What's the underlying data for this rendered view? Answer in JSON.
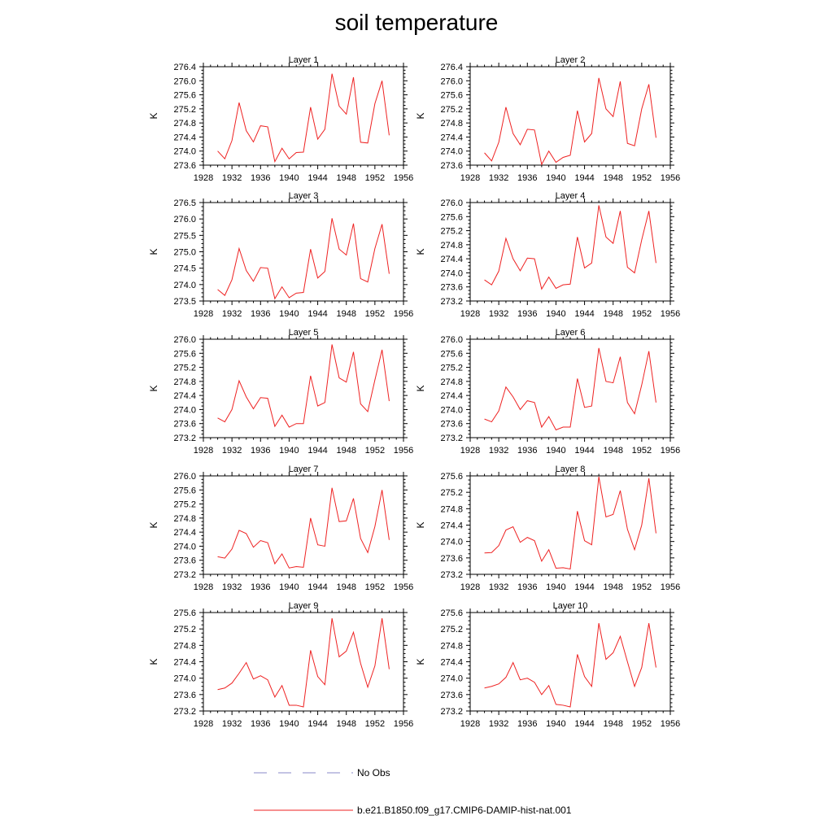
{
  "title": "soil temperature",
  "legend": [
    {
      "label": "No Obs",
      "color": "#8a8ac8",
      "style": "dashed"
    },
    {
      "label": "b.e21.B1850.f09_g17.CMIP6-DAMIP-hist-nat.001",
      "color": "#ee2222",
      "style": "solid"
    }
  ],
  "colors": {
    "series": "#ee2222",
    "axis": "#000000"
  },
  "chart_data": [
    {
      "type": "line",
      "title": "Layer 1",
      "ylabel": "K",
      "xlim": [
        1928,
        1956
      ],
      "xticks": [
        "1928",
        "1932",
        "1936",
        "1940",
        "1944",
        "1948",
        "1952",
        "1956"
      ],
      "ylim": [
        273.6,
        276.4
      ],
      "yticks": [
        "273.6",
        "274.0",
        "274.4",
        "274.8",
        "275.2",
        "275.6",
        "276.0",
        "276.4"
      ],
      "x": [
        1930,
        1931,
        1932,
        1933,
        1934,
        1935,
        1936,
        1937,
        1938,
        1939,
        1940,
        1941,
        1942,
        1943,
        1944,
        1945,
        1946,
        1947,
        1948,
        1949,
        1950,
        1951,
        1952,
        1953,
        1954
      ],
      "series": [
        {
          "values": [
            274.0,
            273.78,
            274.3,
            275.38,
            274.58,
            274.26,
            274.72,
            274.69,
            273.7,
            274.08,
            273.78,
            273.96,
            273.97,
            275.25,
            274.34,
            274.62,
            276.2,
            275.28,
            275.05,
            276.1,
            274.25,
            274.23,
            275.35,
            276.0,
            274.45
          ]
        }
      ]
    },
    {
      "type": "line",
      "title": "Layer 2",
      "ylabel": "K",
      "xlim": [
        1928,
        1956
      ],
      "xticks": [
        "1928",
        "1932",
        "1936",
        "1940",
        "1944",
        "1948",
        "1952",
        "1956"
      ],
      "ylim": [
        273.6,
        276.4
      ],
      "yticks": [
        "273.6",
        "274.0",
        "274.4",
        "274.8",
        "275.2",
        "275.6",
        "276.0",
        "276.4"
      ],
      "x": [
        1930,
        1931,
        1932,
        1933,
        1934,
        1935,
        1936,
        1937,
        1938,
        1939,
        1940,
        1941,
        1942,
        1943,
        1944,
        1945,
        1946,
        1947,
        1948,
        1949,
        1950,
        1951,
        1952,
        1953,
        1954
      ],
      "series": [
        {
          "values": [
            273.95,
            273.72,
            274.25,
            275.25,
            274.5,
            274.18,
            274.62,
            274.6,
            273.62,
            274.0,
            273.68,
            273.82,
            273.88,
            275.15,
            274.26,
            274.5,
            276.08,
            275.2,
            274.98,
            275.98,
            274.22,
            274.15,
            275.2,
            275.9,
            274.38
          ]
        }
      ]
    },
    {
      "type": "line",
      "title": "Layer 3",
      "ylabel": "K",
      "xlim": [
        1928,
        1956
      ],
      "xticks": [
        "1928",
        "1932",
        "1936",
        "1940",
        "1944",
        "1948",
        "1952",
        "1956"
      ],
      "ylim": [
        273.5,
        276.5
      ],
      "yticks": [
        "273.5",
        "274.0",
        "274.5",
        "275.0",
        "275.5",
        "276.0",
        "276.5"
      ],
      "x": [
        1930,
        1931,
        1932,
        1933,
        1934,
        1935,
        1936,
        1937,
        1938,
        1939,
        1940,
        1941,
        1942,
        1943,
        1944,
        1945,
        1946,
        1947,
        1948,
        1949,
        1950,
        1951,
        1952,
        1953,
        1954
      ],
      "series": [
        {
          "values": [
            273.85,
            273.67,
            274.15,
            275.1,
            274.43,
            274.1,
            274.52,
            274.5,
            273.57,
            273.93,
            273.6,
            273.74,
            273.76,
            275.08,
            274.2,
            274.4,
            276.02,
            275.08,
            274.9,
            275.86,
            274.18,
            274.08,
            275.1,
            275.84,
            274.33
          ]
        }
      ]
    },
    {
      "type": "line",
      "title": "Layer 4",
      "ylabel": "K",
      "xlim": [
        1928,
        1956
      ],
      "xticks": [
        "1928",
        "1932",
        "1936",
        "1940",
        "1944",
        "1948",
        "1952",
        "1956"
      ],
      "ylim": [
        273.2,
        276.0
      ],
      "yticks": [
        "273.2",
        "273.6",
        "274.0",
        "274.4",
        "274.8",
        "275.2",
        "275.6",
        "276.0"
      ],
      "x": [
        1930,
        1931,
        1932,
        1933,
        1934,
        1935,
        1936,
        1937,
        1938,
        1939,
        1940,
        1941,
        1942,
        1943,
        1944,
        1945,
        1946,
        1947,
        1948,
        1949,
        1950,
        1951,
        1952,
        1953,
        1954
      ],
      "series": [
        {
          "values": [
            273.8,
            273.66,
            274.05,
            274.98,
            274.4,
            274.06,
            274.42,
            274.4,
            273.54,
            273.88,
            273.56,
            273.66,
            273.68,
            275.02,
            274.14,
            274.28,
            275.92,
            275.02,
            274.84,
            275.76,
            274.16,
            274.0,
            274.94,
            275.76,
            274.28
          ]
        }
      ]
    },
    {
      "type": "line",
      "title": "Layer 5",
      "ylabel": "K",
      "xlim": [
        1928,
        1956
      ],
      "xticks": [
        "1928",
        "1932",
        "1936",
        "1940",
        "1944",
        "1948",
        "1952",
        "1956"
      ],
      "ylim": [
        273.2,
        276.0
      ],
      "yticks": [
        "273.2",
        "273.6",
        "274.0",
        "274.4",
        "274.8",
        "275.2",
        "275.6",
        "276.0"
      ],
      "x": [
        1930,
        1931,
        1932,
        1933,
        1934,
        1935,
        1936,
        1937,
        1938,
        1939,
        1940,
        1941,
        1942,
        1943,
        1944,
        1945,
        1946,
        1947,
        1948,
        1949,
        1950,
        1951,
        1952,
        1953,
        1954
      ],
      "series": [
        {
          "values": [
            273.76,
            273.65,
            274.0,
            274.82,
            274.36,
            274.02,
            274.34,
            274.32,
            273.52,
            273.84,
            273.5,
            273.6,
            273.6,
            274.96,
            274.1,
            274.2,
            275.85,
            274.9,
            274.78,
            275.64,
            274.16,
            273.94,
            274.84,
            275.7,
            274.24
          ]
        }
      ]
    },
    {
      "type": "line",
      "title": "Layer 6",
      "ylabel": "K",
      "xlim": [
        1928,
        1956
      ],
      "xticks": [
        "1928",
        "1932",
        "1936",
        "1940",
        "1944",
        "1948",
        "1952",
        "1956"
      ],
      "ylim": [
        273.2,
        276.0
      ],
      "yticks": [
        "273.2",
        "273.6",
        "274.0",
        "274.4",
        "274.8",
        "275.2",
        "275.6",
        "276.0"
      ],
      "x": [
        1930,
        1931,
        1932,
        1933,
        1934,
        1935,
        1936,
        1937,
        1938,
        1939,
        1940,
        1941,
        1942,
        1943,
        1944,
        1945,
        1946,
        1947,
        1948,
        1949,
        1950,
        1951,
        1952,
        1953,
        1954
      ],
      "series": [
        {
          "values": [
            273.73,
            273.65,
            273.96,
            274.64,
            274.36,
            274.0,
            274.25,
            274.2,
            273.5,
            273.8,
            273.42,
            273.5,
            273.5,
            274.88,
            274.06,
            274.1,
            275.75,
            274.8,
            274.76,
            275.5,
            274.2,
            273.88,
            274.7,
            275.66,
            274.2
          ]
        }
      ]
    },
    {
      "type": "line",
      "title": "Layer 7",
      "ylabel": "K",
      "xlim": [
        1928,
        1956
      ],
      "xticks": [
        "1928",
        "1932",
        "1936",
        "1940",
        "1944",
        "1948",
        "1952",
        "1956"
      ],
      "ylim": [
        273.2,
        276.0
      ],
      "yticks": [
        "273.2",
        "273.6",
        "274.0",
        "274.4",
        "274.8",
        "275.2",
        "275.6",
        "276.0"
      ],
      "x": [
        1930,
        1931,
        1932,
        1933,
        1934,
        1935,
        1936,
        1937,
        1938,
        1939,
        1940,
        1941,
        1942,
        1943,
        1944,
        1945,
        1946,
        1947,
        1948,
        1949,
        1950,
        1951,
        1952,
        1953,
        1954
      ],
      "series": [
        {
          "values": [
            273.7,
            273.66,
            273.92,
            274.45,
            274.36,
            273.97,
            274.16,
            274.1,
            273.5,
            273.78,
            273.38,
            273.42,
            273.4,
            274.8,
            274.04,
            274.0,
            275.66,
            274.7,
            274.72,
            275.36,
            274.22,
            273.82,
            274.56,
            275.6,
            274.18
          ]
        }
      ]
    },
    {
      "type": "line",
      "title": "Layer 8",
      "ylabel": "K",
      "xlim": [
        1928,
        1956
      ],
      "xticks": [
        "1928",
        "1932",
        "1936",
        "1940",
        "1944",
        "1948",
        "1952",
        "1956"
      ],
      "ylim": [
        273.2,
        275.6
      ],
      "yticks": [
        "273.2",
        "273.6",
        "274.0",
        "274.4",
        "274.8",
        "275.2",
        "275.6"
      ],
      "x": [
        1930,
        1931,
        1932,
        1933,
        1934,
        1935,
        1936,
        1937,
        1938,
        1939,
        1940,
        1941,
        1942,
        1943,
        1944,
        1945,
        1946,
        1947,
        1948,
        1949,
        1950,
        1951,
        1952,
        1953,
        1954
      ],
      "series": [
        {
          "values": [
            273.72,
            273.73,
            273.9,
            274.28,
            274.36,
            273.98,
            274.1,
            274.02,
            273.52,
            273.8,
            273.35,
            273.36,
            273.33,
            274.74,
            274.02,
            273.92,
            275.58,
            274.6,
            274.66,
            275.24,
            274.3,
            273.8,
            274.4,
            275.54,
            274.2
          ]
        }
      ]
    },
    {
      "type": "line",
      "title": "Layer 9",
      "ylabel": "K",
      "xlim": [
        1928,
        1956
      ],
      "xticks": [
        "1928",
        "1932",
        "1936",
        "1940",
        "1944",
        "1948",
        "1952",
        "1956"
      ],
      "ylim": [
        273.2,
        275.6
      ],
      "yticks": [
        "273.2",
        "273.6",
        "274.0",
        "274.4",
        "274.8",
        "275.2",
        "275.6"
      ],
      "x": [
        1930,
        1931,
        1932,
        1933,
        1934,
        1935,
        1936,
        1937,
        1938,
        1939,
        1940,
        1941,
        1942,
        1943,
        1944,
        1945,
        1946,
        1947,
        1948,
        1949,
        1950,
        1951,
        1952,
        1953,
        1954
      ],
      "series": [
        {
          "values": [
            273.72,
            273.76,
            273.88,
            274.12,
            274.38,
            273.98,
            274.06,
            273.96,
            273.54,
            273.82,
            273.34,
            273.34,
            273.3,
            274.68,
            274.04,
            273.84,
            275.46,
            274.52,
            274.66,
            275.12,
            274.36,
            273.78,
            274.3,
            275.46,
            274.22
          ]
        }
      ]
    },
    {
      "type": "line",
      "title": "Layer 10",
      "ylabel": "K",
      "xlim": [
        1928,
        1956
      ],
      "xticks": [
        "1928",
        "1932",
        "1936",
        "1940",
        "1944",
        "1948",
        "1952",
        "1956"
      ],
      "ylim": [
        273.2,
        275.6
      ],
      "yticks": [
        "273.2",
        "273.6",
        "274.0",
        "274.4",
        "274.8",
        "275.2",
        "275.6"
      ],
      "x": [
        1930,
        1931,
        1932,
        1933,
        1934,
        1935,
        1936,
        1937,
        1938,
        1939,
        1940,
        1941,
        1942,
        1943,
        1944,
        1945,
        1946,
        1947,
        1948,
        1949,
        1950,
        1951,
        1952,
        1953,
        1954
      ],
      "series": [
        {
          "values": [
            273.76,
            273.8,
            273.86,
            274.02,
            274.38,
            273.96,
            274.0,
            273.9,
            273.6,
            273.82,
            273.36,
            273.34,
            273.3,
            274.58,
            274.04,
            273.8,
            275.34,
            274.46,
            274.62,
            275.02,
            274.4,
            273.8,
            274.26,
            275.34,
            274.26
          ]
        }
      ]
    }
  ]
}
